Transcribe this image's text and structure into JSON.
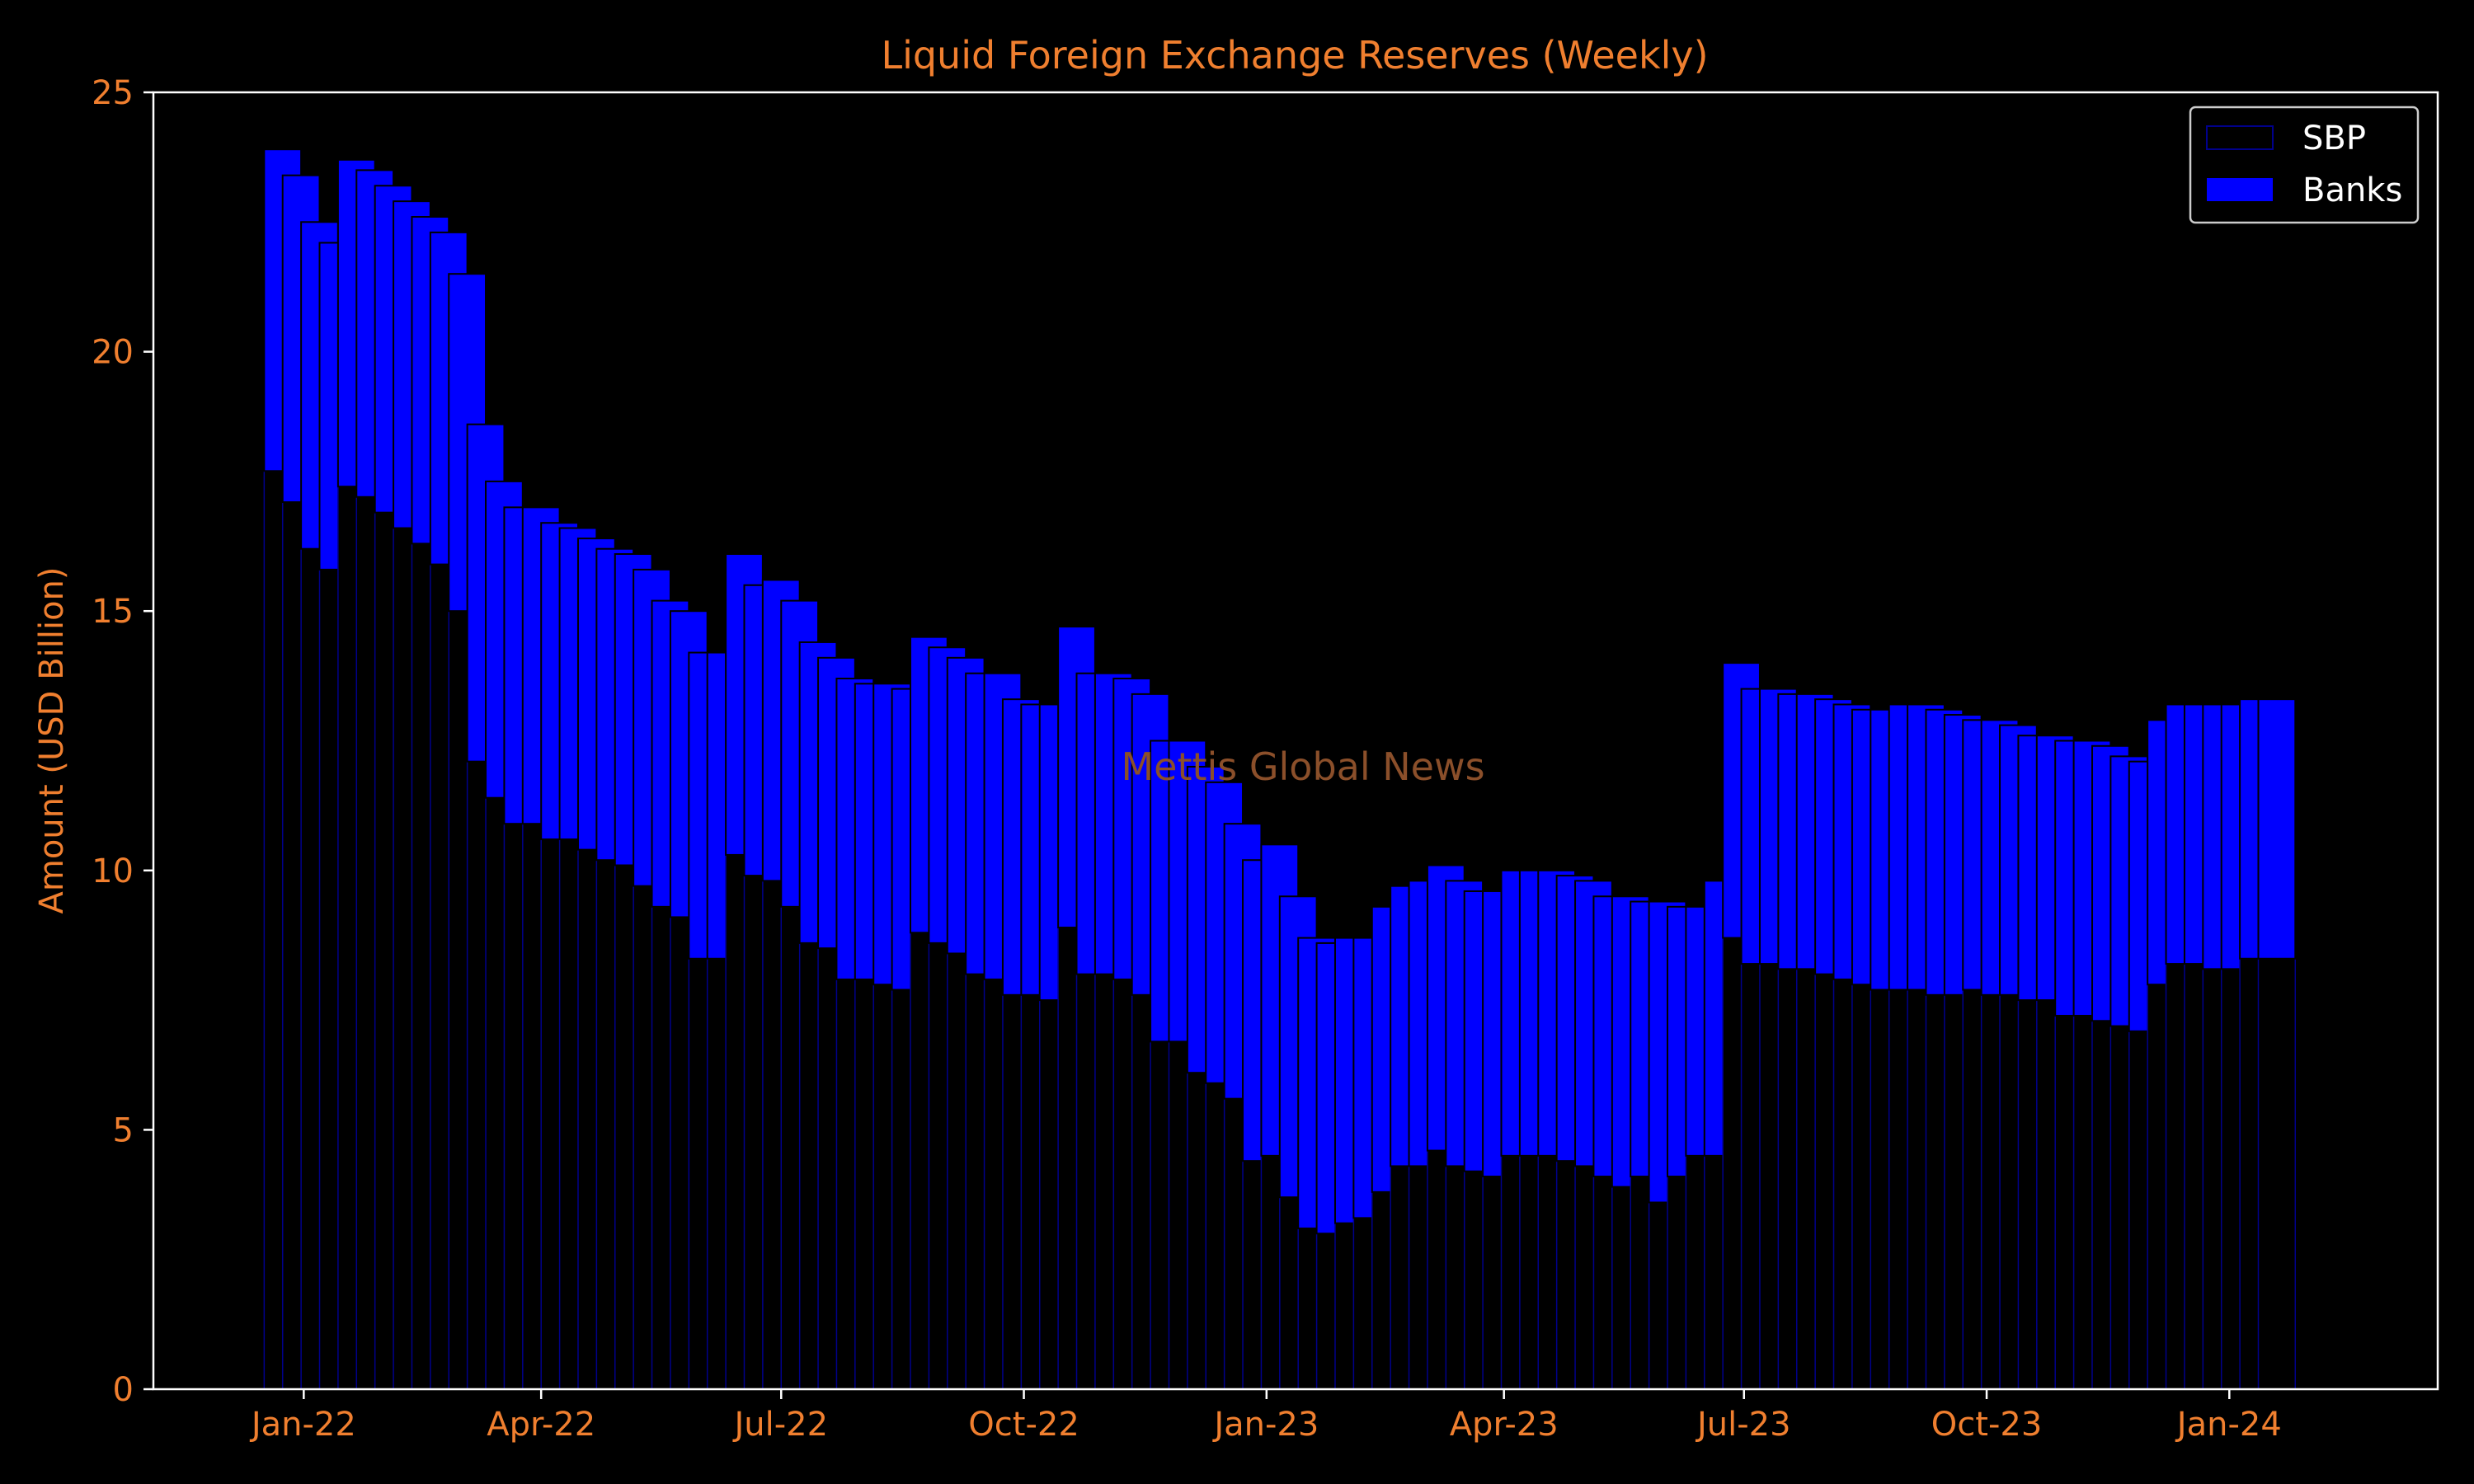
{
  "chart_data": {
    "type": "bar",
    "stacked": true,
    "title": "Liquid Foreign Exchange Reserves (Weekly)",
    "xlabel": "",
    "ylabel": "Amount (USD Billion)",
    "ylim": [
      0,
      25
    ],
    "yticks": [
      0,
      5,
      10,
      15,
      20,
      25
    ],
    "xlim": [
      "2021-11-05",
      "2024-03-20"
    ],
    "xticks": [
      {
        "date": "2022-01-01",
        "label": "Jan-22"
      },
      {
        "date": "2022-04-01",
        "label": "Apr-22"
      },
      {
        "date": "2022-07-01",
        "label": "Jul-22"
      },
      {
        "date": "2022-10-01",
        "label": "Oct-22"
      },
      {
        "date": "2023-01-01",
        "label": "Jan-23"
      },
      {
        "date": "2023-04-01",
        "label": "Apr-23"
      },
      {
        "date": "2023-07-01",
        "label": "Jul-23"
      },
      {
        "date": "2023-10-01",
        "label": "Oct-23"
      },
      {
        "date": "2024-01-01",
        "label": "Jan-24"
      }
    ],
    "bar_width_days": 14,
    "grid": false,
    "legend_position": "top-right",
    "annotation": "Mettis Global News",
    "x": [
      "2021-12-24",
      "2021-12-31",
      "2022-01-07",
      "2022-01-14",
      "2022-01-21",
      "2022-01-28",
      "2022-02-04",
      "2022-02-11",
      "2022-02-18",
      "2022-02-25",
      "2022-03-04",
      "2022-03-11",
      "2022-03-18",
      "2022-03-25",
      "2022-04-01",
      "2022-04-08",
      "2022-04-15",
      "2022-04-22",
      "2022-04-29",
      "2022-05-06",
      "2022-05-13",
      "2022-05-20",
      "2022-05-27",
      "2022-06-03",
      "2022-06-10",
      "2022-06-17",
      "2022-06-24",
      "2022-07-01",
      "2022-07-08",
      "2022-07-15",
      "2022-07-22",
      "2022-07-29",
      "2022-08-05",
      "2022-08-12",
      "2022-08-19",
      "2022-08-26",
      "2022-09-02",
      "2022-09-09",
      "2022-09-16",
      "2022-09-23",
      "2022-09-30",
      "2022-10-07",
      "2022-10-14",
      "2022-10-21",
      "2022-10-28",
      "2022-11-04",
      "2022-11-11",
      "2022-11-18",
      "2022-11-25",
      "2022-12-02",
      "2022-12-09",
      "2022-12-16",
      "2022-12-23",
      "2022-12-30",
      "2023-01-06",
      "2023-01-13",
      "2023-01-20",
      "2023-01-27",
      "2023-02-03",
      "2023-02-10",
      "2023-02-17",
      "2023-02-24",
      "2023-03-03",
      "2023-03-10",
      "2023-03-17",
      "2023-03-24",
      "2023-03-31",
      "2023-04-07",
      "2023-04-14",
      "2023-04-21",
      "2023-04-28",
      "2023-05-05",
      "2023-05-12",
      "2023-05-19",
      "2023-05-26",
      "2023-06-02",
      "2023-06-09",
      "2023-06-16",
      "2023-06-23",
      "2023-06-30",
      "2023-07-07",
      "2023-07-14",
      "2023-07-21",
      "2023-07-28",
      "2023-08-04",
      "2023-08-11",
      "2023-08-18",
      "2023-08-25",
      "2023-09-01",
      "2023-09-08",
      "2023-09-15",
      "2023-09-22",
      "2023-09-29",
      "2023-10-06",
      "2023-10-13",
      "2023-10-20",
      "2023-10-27",
      "2023-11-03",
      "2023-11-10",
      "2023-11-17",
      "2023-11-24",
      "2023-12-01",
      "2023-12-08",
      "2023-12-15",
      "2023-12-22",
      "2023-12-29",
      "2024-01-05",
      "2024-01-12",
      "2024-01-19"
    ],
    "series": [
      {
        "name": "SBP",
        "color": "#000000",
        "edgecolor": "#00008b",
        "values": [
          17.7,
          17.1,
          16.2,
          15.8,
          17.4,
          17.2,
          16.9,
          16.6,
          16.3,
          15.9,
          15.0,
          12.1,
          11.4,
          10.9,
          10.9,
          10.6,
          10.6,
          10.4,
          10.2,
          10.1,
          9.7,
          9.3,
          9.1,
          8.3,
          8.3,
          10.3,
          9.9,
          9.8,
          9.3,
          8.6,
          8.5,
          7.9,
          7.9,
          7.8,
          7.7,
          8.8,
          8.6,
          8.4,
          8.0,
          7.9,
          7.6,
          7.6,
          7.5,
          8.9,
          8.0,
          8.0,
          7.9,
          7.6,
          6.7,
          6.7,
          6.1,
          5.9,
          5.6,
          4.4,
          4.5,
          3.7,
          3.1,
          3.0,
          3.2,
          3.3,
          3.8,
          4.3,
          4.3,
          4.6,
          4.3,
          4.2,
          4.1,
          4.5,
          4.5,
          4.5,
          4.4,
          4.3,
          4.1,
          3.9,
          4.1,
          3.6,
          4.1,
          4.5,
          4.5,
          8.7,
          8.2,
          8.2,
          8.1,
          8.1,
          8.0,
          7.9,
          7.8,
          7.7,
          7.7,
          7.7,
          7.6,
          7.6,
          7.7,
          7.6,
          7.6,
          7.5,
          7.5,
          7.2,
          7.2,
          7.1,
          7.0,
          6.9,
          7.8,
          8.2,
          8.2,
          8.1,
          8.1,
          8.3,
          8.3
        ]
      },
      {
        "name": "Banks",
        "color": "#0000ff",
        "edgecolor": "#000000",
        "values": [
          6.2,
          6.3,
          6.3,
          6.3,
          6.3,
          6.3,
          6.3,
          6.3,
          6.3,
          6.4,
          6.5,
          6.5,
          6.1,
          6.1,
          6.1,
          6.1,
          6.0,
          6.0,
          6.0,
          6.0,
          6.1,
          5.9,
          5.9,
          5.9,
          5.9,
          5.8,
          5.6,
          5.8,
          5.9,
          5.8,
          5.6,
          5.8,
          5.7,
          5.8,
          5.8,
          5.7,
          5.7,
          5.7,
          5.8,
          5.9,
          5.7,
          5.6,
          5.7,
          5.8,
          5.8,
          5.8,
          5.8,
          5.8,
          5.8,
          5.8,
          5.9,
          5.8,
          5.3,
          5.8,
          6.0,
          5.8,
          5.6,
          5.6,
          5.5,
          5.4,
          5.5,
          5.4,
          5.5,
          5.5,
          5.5,
          5.4,
          5.5,
          5.5,
          5.5,
          5.5,
          5.5,
          5.5,
          5.4,
          5.6,
          5.3,
          5.8,
          5.2,
          4.8,
          5.3,
          5.3,
          5.3,
          5.3,
          5.3,
          5.3,
          5.3,
          5.3,
          5.3,
          5.4,
          5.5,
          5.5,
          5.5,
          5.4,
          5.2,
          5.3,
          5.2,
          5.1,
          5.1,
          5.3,
          5.3,
          5.3,
          5.2,
          5.2,
          5.1,
          5.0,
          5.0,
          5.1,
          5.1,
          5.0,
          5.0
        ]
      }
    ]
  }
}
